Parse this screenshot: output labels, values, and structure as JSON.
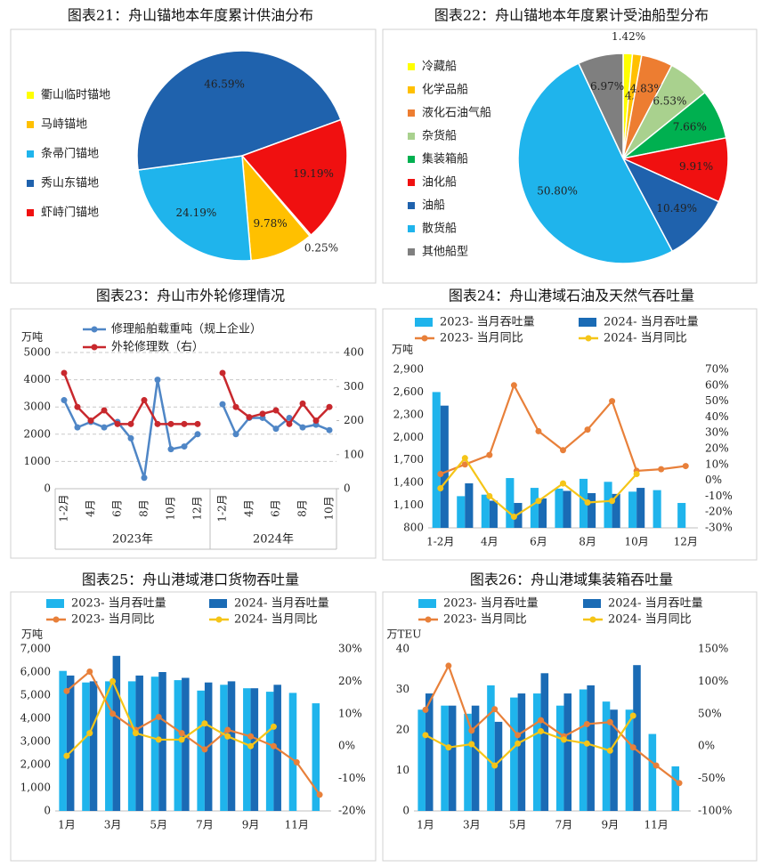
{
  "chart_data": [
    {
      "type": "pie",
      "title": "图表21：舟山锚地本年度累计供油分布",
      "categories": [
        "衢山临时锚地",
        "马峙锚地",
        "条帚门锚地",
        "秀山东锚地",
        "虾峙门锚地"
      ],
      "values": [
        0.25,
        9.78,
        24.19,
        46.59,
        19.19
      ],
      "value_labels": [
        "0.25%",
        "9.78%",
        "24.19%",
        "46.59%",
        "19.19%"
      ],
      "colors": [
        "#ffff00",
        "#ffc000",
        "#1fb4ec",
        "#1f62ad",
        "#f01010"
      ],
      "legend": "left"
    },
    {
      "type": "pie",
      "title": "图表22：舟山锚地本年度累计受油船型分布",
      "categories": [
        "冷藏船",
        "化学品船",
        "液化石油气船",
        "杂货船",
        "集装箱船",
        "油化船",
        "油船",
        "散货船",
        "其他船型"
      ],
      "values": [
        1.42,
        1.42,
        4.83,
        6.53,
        7.66,
        9.91,
        10.49,
        50.8,
        6.97
      ],
      "value_labels": [
        "1.42%",
        "1.42%",
        "4.83%",
        "6.53%",
        "7.66%",
        "9.91%",
        "10.49%",
        "50.80%",
        "6.97%"
      ],
      "colors": [
        "#ffff00",
        "#ffc000",
        "#ed7d31",
        "#a9d18e",
        "#00b050",
        "#f01010",
        "#1f62ad",
        "#1fb4ec",
        "#7f7f7f"
      ],
      "legend": "left"
    },
    {
      "type": "line",
      "title": "图表23：舟山市外轮修理情况",
      "y_label": "万吨",
      "groups": [
        {
          "label": "2023年",
          "categories": [
            "1-2月",
            null,
            "4月",
            null,
            "6月",
            null,
            "8月",
            null,
            "10月",
            null,
            "12月"
          ]
        },
        {
          "label": "2024年",
          "categories": [
            "1-2月",
            null,
            "4月",
            null,
            "6月",
            null,
            "8月",
            null,
            "10月"
          ]
        }
      ],
      "series": [
        {
          "name": "修理船舶载重吨（规上企业）",
          "color": "#4f86c6",
          "values": [
            3250,
            2250,
            2450,
            2250,
            2450,
            1850,
            400,
            4000,
            1450,
            1550,
            2000,
            3100,
            2000,
            2600,
            2600,
            2200,
            2600,
            2250,
            2350,
            2150
          ]
        },
        {
          "name": "外轮修理数（右）",
          "color": "#c8282d",
          "axis": "y2",
          "values": [
            340,
            240,
            200,
            230,
            190,
            190,
            260,
            190,
            190,
            190,
            190,
            340,
            240,
            210,
            220,
            230,
            190,
            250,
            200,
            240
          ]
        }
      ],
      "ylim": [
        0,
        5000
      ],
      "yticks": [
        0,
        1000,
        2000,
        3000,
        4000,
        5000
      ],
      "y2lim": [
        0,
        400
      ],
      "y2ticks": [
        0,
        100,
        200,
        300,
        400
      ],
      "grid": true,
      "legend": "top"
    },
    {
      "type": "bar-line",
      "title": "图表24：舟山港域石油及天然气吞吐量",
      "y_label": "万吨",
      "categories": [
        "1-2月",
        null,
        "4月",
        null,
        "6月",
        null,
        "8月",
        null,
        "10月",
        null,
        "12月"
      ],
      "series": [
        {
          "name": "2023- 当月吞吐量",
          "type": "bar",
          "color": "#1fb4ec",
          "values": [
            2600,
            1220,
            1240,
            1460,
            1330,
            1320,
            1450,
            1410,
            1280,
            1300,
            1130
          ]
        },
        {
          "name": "2024- 当月吞吐量",
          "type": "bar",
          "color": "#1a6bb5",
          "values": [
            2420,
            1390,
            1160,
            1130,
            1190,
            1290,
            1260,
            1250,
            1330,
            null,
            null
          ]
        },
        {
          "name": "2023- 当月同比",
          "type": "line",
          "axis": "y2",
          "color": "#e8803a",
          "values": [
            4,
            10,
            16,
            60,
            31,
            19,
            32,
            50,
            6,
            7,
            9
          ]
        },
        {
          "name": "2024- 当月同比",
          "type": "line",
          "axis": "y2",
          "color": "#f5c518",
          "values": [
            -5,
            14,
            -10,
            -23,
            -13,
            -2,
            -14,
            -13,
            4,
            null,
            null
          ]
        }
      ],
      "ylim": [
        800,
        2900
      ],
      "yticks": [
        800,
        {
          "value": 1100,
          "label": "1,100"
        },
        {
          "value": 1400,
          "label": "1,400"
        },
        {
          "value": 1700,
          "label": "1,700"
        },
        {
          "value": 2000,
          "label": "2,000"
        },
        {
          "value": 2300,
          "label": "2,300"
        },
        {
          "value": 2600,
          "label": "2,600"
        },
        {
          "value": 2900,
          "label": "2,900"
        }
      ],
      "y2lim": [
        -30,
        70
      ],
      "y2ticks": [
        {
          "value": -30,
          "label": "-30%"
        },
        {
          "value": -20,
          "label": "-20%"
        },
        {
          "value": -10,
          "label": "-10%"
        },
        {
          "value": 0,
          "label": "0%"
        },
        {
          "value": 10,
          "label": "10%"
        },
        {
          "value": 20,
          "label": "20%"
        },
        {
          "value": 30,
          "label": "30%"
        },
        {
          "value": 40,
          "label": "40%"
        },
        {
          "value": 50,
          "label": "50%"
        },
        {
          "value": 60,
          "label": "60%"
        },
        {
          "value": 70,
          "label": "70%"
        }
      ],
      "legend": "top"
    },
    {
      "type": "bar-line",
      "title": "图表25：舟山港域港口货物吞吐量",
      "y_label": "万吨",
      "categories": [
        "1月",
        null,
        "3月",
        null,
        "5月",
        null,
        "7月",
        null,
        "9月",
        null,
        "11月",
        null
      ],
      "series": [
        {
          "name": "2023- 当月吞吐量",
          "type": "bar",
          "color": "#1fb4ec",
          "values": [
            6050,
            5550,
            5600,
            5600,
            5800,
            5650,
            5200,
            5450,
            5300,
            5150,
            5100,
            4650
          ]
        },
        {
          "name": "2024- 当月吞吐量",
          "type": "bar",
          "color": "#1a6bb5",
          "values": [
            5850,
            5600,
            6700,
            5850,
            6000,
            5750,
            5550,
            5600,
            5300,
            5450,
            null,
            null
          ]
        },
        {
          "name": "2023- 当月同比",
          "type": "line",
          "axis": "y2",
          "color": "#e8803a",
          "values": [
            17,
            23,
            10,
            5,
            9,
            4,
            -1,
            5,
            3,
            0,
            -5,
            -15
          ]
        },
        {
          "name": "2024- 当月同比",
          "type": "line",
          "axis": "y2",
          "color": "#f5c518",
          "values": [
            -3,
            4,
            20,
            4,
            2,
            2,
            7,
            3,
            0,
            6,
            null,
            null
          ]
        }
      ],
      "ylim": [
        0,
        7000
      ],
      "yticks": [
        0,
        {
          "value": 1000,
          "label": "1,000"
        },
        {
          "value": 2000,
          "label": "2,000"
        },
        {
          "value": 3000,
          "label": "3,000"
        },
        {
          "value": 4000,
          "label": "4,000"
        },
        {
          "value": 5000,
          "label": "5,000"
        },
        {
          "value": 6000,
          "label": "6,000"
        },
        {
          "value": 7000,
          "label": "7,000"
        }
      ],
      "y2lim": [
        -20,
        30
      ],
      "y2ticks": [
        {
          "value": -20,
          "label": "-20%"
        },
        {
          "value": -10,
          "label": "-10%"
        },
        {
          "value": 0,
          "label": "0%"
        },
        {
          "value": 10,
          "label": "10%"
        },
        {
          "value": 20,
          "label": "20%"
        },
        {
          "value": 30,
          "label": "30%"
        }
      ],
      "legend": "top"
    },
    {
      "type": "bar-line",
      "title": "图表26：舟山港域集装箱吞吐量",
      "y_label": "万TEU",
      "categories": [
        "1月",
        null,
        "3月",
        null,
        "5月",
        null,
        "7月",
        null,
        "9月",
        null,
        "11月",
        null
      ],
      "series": [
        {
          "name": "2023- 当月吞吐量",
          "type": "bar",
          "color": "#1fb4ec",
          "values": [
            25,
            26,
            24,
            31,
            28,
            29,
            26,
            30,
            27,
            25,
            19,
            11
          ]
        },
        {
          "name": "2024- 当月吞吐量",
          "type": "bar",
          "color": "#1a6bb5",
          "values": [
            29,
            26,
            26,
            22,
            29,
            34,
            29,
            31,
            25,
            36,
            null,
            null
          ]
        },
        {
          "name": "2023- 当月同比",
          "type": "line",
          "axis": "y2",
          "color": "#e8803a",
          "values": [
            56,
            124,
            24,
            57,
            17,
            40,
            15,
            34,
            37,
            -2,
            -30,
            -57
          ]
        },
        {
          "name": "2024- 当月同比",
          "type": "line",
          "axis": "y2",
          "color": "#f5c518",
          "values": [
            17,
            -2,
            3,
            -30,
            4,
            23,
            10,
            4,
            -7,
            47,
            null,
            null
          ]
        }
      ],
      "ylim": [
        0,
        40
      ],
      "yticks": [
        0,
        10,
        20,
        30,
        40
      ],
      "y2lim": [
        -100,
        150
      ],
      "y2ticks": [
        {
          "value": -100,
          "label": "-100%"
        },
        {
          "value": -50,
          "label": "-50%"
        },
        {
          "value": 0,
          "label": "0%"
        },
        {
          "value": 50,
          "label": "50%"
        },
        {
          "value": 100,
          "label": "100%"
        },
        {
          "value": 150,
          "label": "150%"
        }
      ],
      "legend": "top"
    }
  ]
}
